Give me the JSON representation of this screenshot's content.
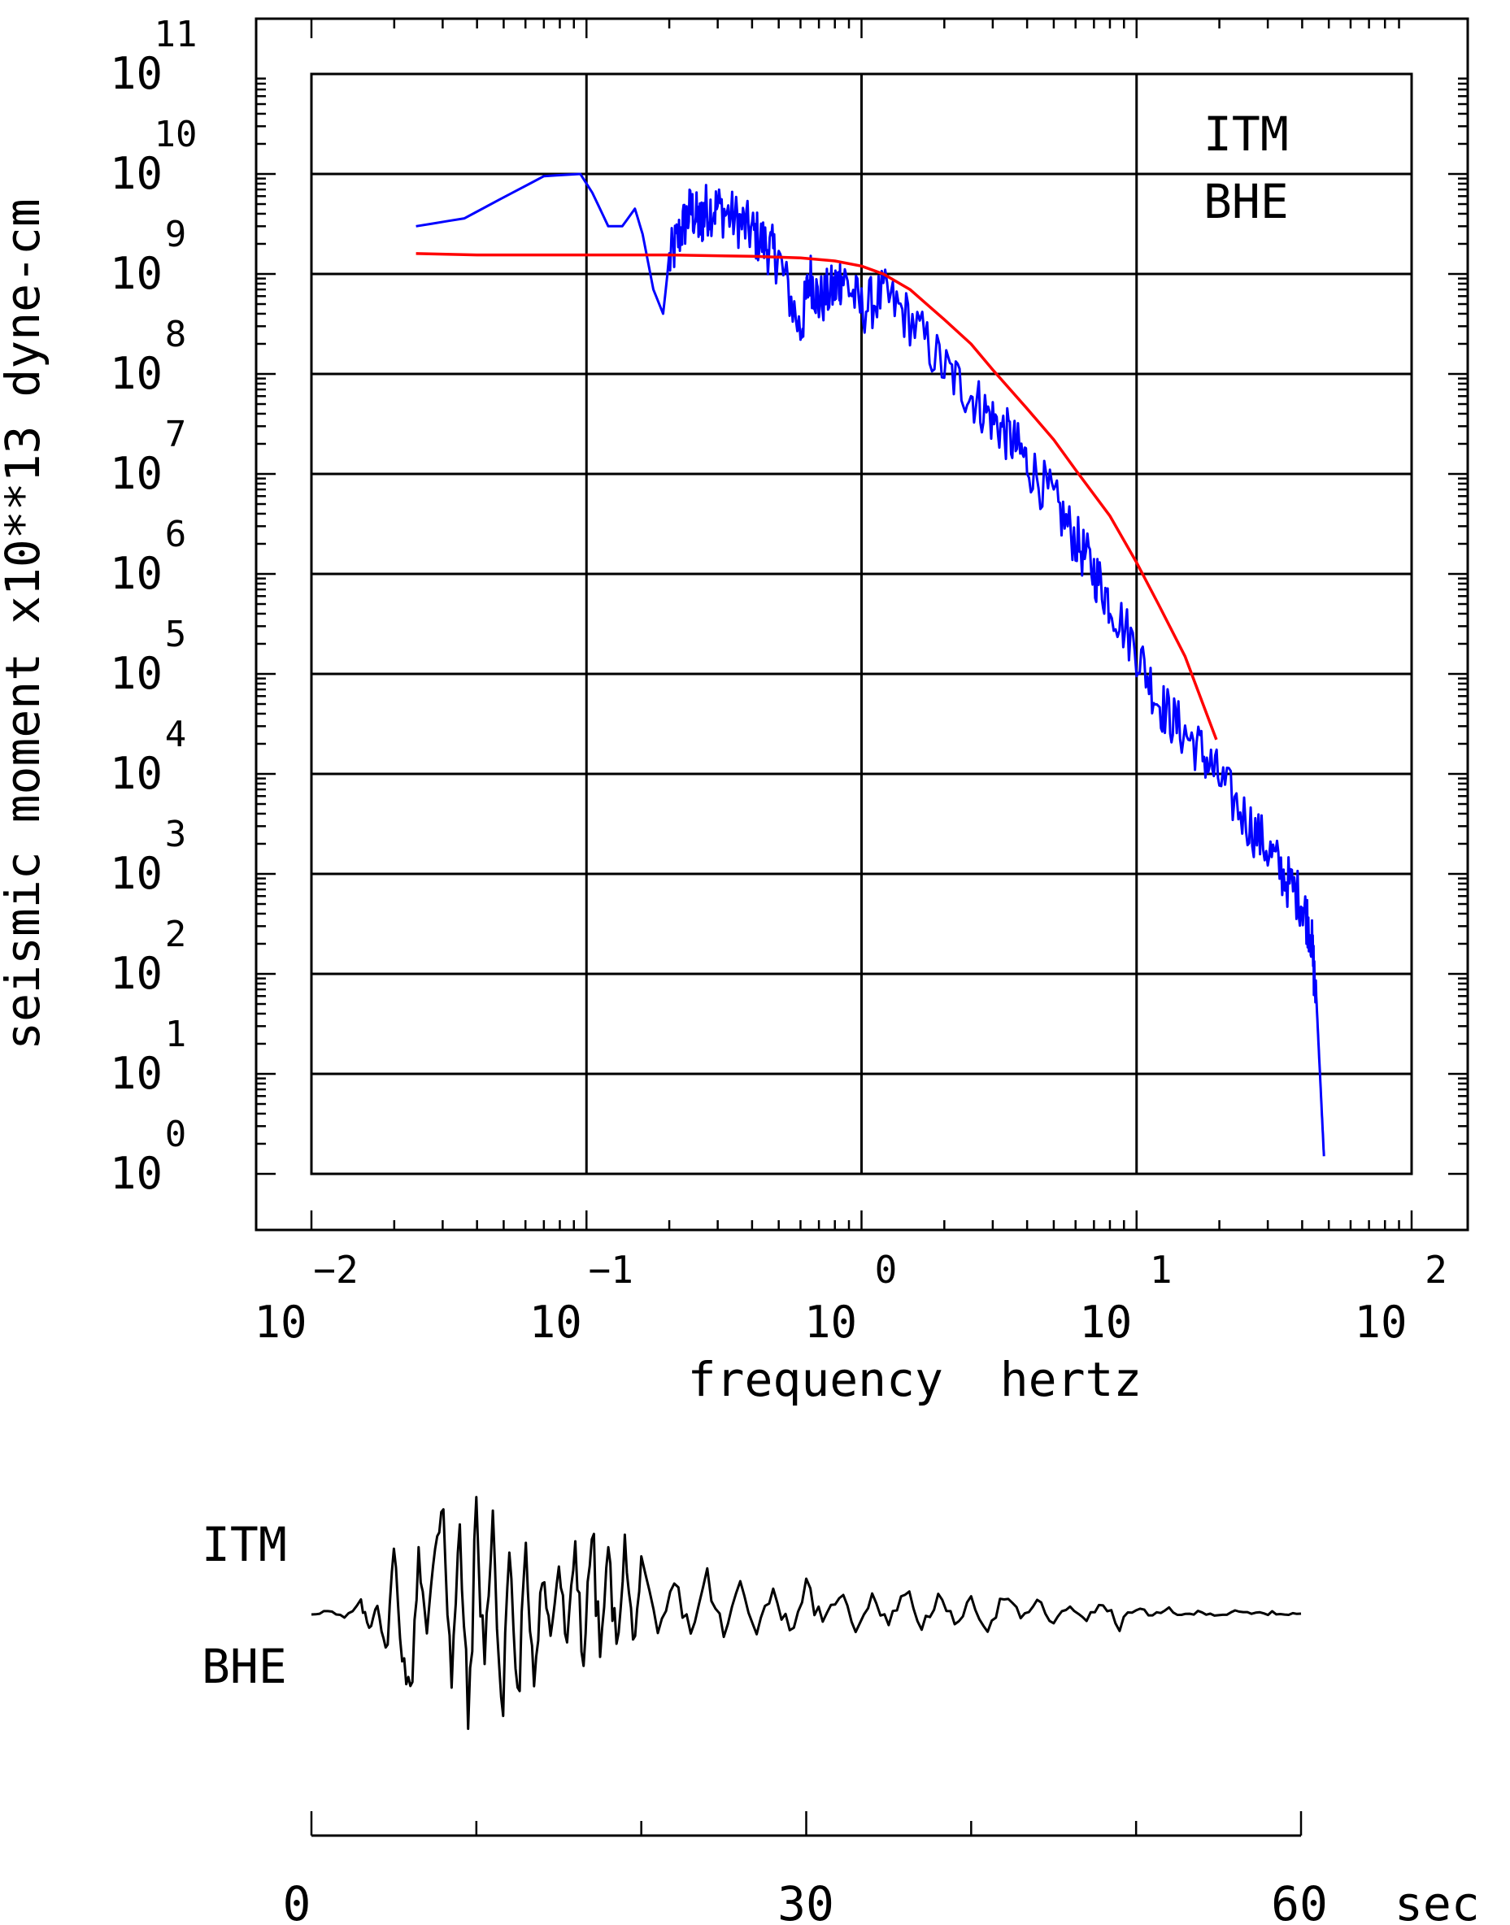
{
  "chart_data": [
    {
      "type": "line",
      "title": "",
      "xlabel": "frequency  hertz",
      "ylabel": "seismic moment x10**13 dyne-cm",
      "xscale": "log",
      "yscale": "log",
      "xlim": [
        0.01,
        100
      ],
      "ylim": [
        1,
        100000000000
      ],
      "grid": true,
      "x_tick_labels": [
        {
          "base": "10",
          "exp": "−2"
        },
        {
          "base": "10",
          "exp": "−1"
        },
        {
          "base": "10",
          "exp": "0"
        },
        {
          "base": "10",
          "exp": "1"
        },
        {
          "base": "10",
          "exp": "2"
        }
      ],
      "y_tick_labels": [
        {
          "base": "10",
          "exp": "0"
        },
        {
          "base": "10",
          "exp": "1"
        },
        {
          "base": "10",
          "exp": "2"
        },
        {
          "base": "10",
          "exp": "3"
        },
        {
          "base": "10",
          "exp": "4"
        },
        {
          "base": "10",
          "exp": "5"
        },
        {
          "base": "10",
          "exp": "6"
        },
        {
          "base": "10",
          "exp": "7"
        },
        {
          "base": "10",
          "exp": "8"
        },
        {
          "base": "10",
          "exp": "9"
        },
        {
          "base": "10",
          "exp": "10"
        },
        {
          "base": "10",
          "exp": "11"
        }
      ],
      "annotations": [
        "ITM",
        "BHE"
      ],
      "series": [
        {
          "color": "#0000ff",
          "style": "observed spectrum",
          "x": [
            0.024,
            0.036,
            0.048,
            0.07,
            0.095,
            0.105,
            0.12,
            0.135,
            0.15,
            0.16,
            0.175,
            0.19,
            0.2,
            0.22,
            0.24,
            0.26,
            0.27,
            0.3,
            0.35,
            0.4,
            0.45,
            0.5,
            0.6,
            0.65,
            0.7,
            0.8,
            0.85,
            1.0,
            1.2,
            1.5,
            2.0,
            2.5,
            3.0,
            3.5,
            4.0,
            5.0,
            6.0,
            7.0,
            8.0,
            10.0,
            12.0,
            14.0,
            17.0,
            20.0,
            25.0,
            30.0,
            35.0,
            40.0,
            43.0,
            45.0,
            47.0,
            48.0
          ],
          "y": [
            3000000000.0,
            3600000000.0,
            5500000000.0,
            9500000000.0,
            10000000000.0,
            6500000000.0,
            3000000000.0,
            3000000000.0,
            4500000000.0,
            2500000000.0,
            700000000.0,
            400000000.0,
            1500000000.0,
            3000000000.0,
            5000000000.0,
            3500000000.0,
            5000000000.0,
            5200000000.0,
            4000000000.0,
            3000000000.0,
            2200000000.0,
            1600000000.0,
            300000000.0,
            1100000000.0,
            600000000.0,
            800000000.0,
            1100000000.0,
            500000000.0,
            700000000.0,
            400000000.0,
            130000000.0,
            70000000.0,
            40000000.0,
            25000000.0,
            15000000.0,
            6000000.0,
            2500000.0,
            1200000.0,
            600000.0,
            200000.0,
            60000.0,
            35000.0,
            20000.0,
            10000.0,
            4000.0,
            2000.0,
            1000.0,
            600.0,
            300.0,
            60.0,
            5.0,
            1.5
          ]
        },
        {
          "color": "#ff0000",
          "style": "model fit",
          "x": [
            0.024,
            0.04,
            0.1,
            0.2,
            0.4,
            0.6,
            0.8,
            1.0,
            1.2,
            1.5,
            2.0,
            2.5,
            3.0,
            4.0,
            5.0,
            6.0,
            8.0,
            10.0,
            12.0,
            15.0,
            19.5
          ],
          "y": [
            1600000000.0,
            1550000000.0,
            1550000000.0,
            1550000000.0,
            1500000000.0,
            1450000000.0,
            1350000000.0,
            1200000000.0,
            1000000000.0,
            700000000.0,
            350000000.0,
            200000000.0,
            110000000.0,
            45000000.0,
            22000000.0,
            11000000.0,
            3800000.0,
            1300000.0,
            500000.0,
            150000.0,
            22000.0
          ]
        }
      ]
    },
    {
      "type": "line",
      "title": "",
      "annotations": [
        "ITM",
        "BHE"
      ],
      "x_unit_label": "sec",
      "x_tick_labels": [
        "0",
        "30",
        "60"
      ],
      "xlim": [
        0,
        60
      ],
      "series": [
        {
          "color": "#000000",
          "style": "seismogram",
          "t": [
            0,
            1,
            2,
            3,
            3.5,
            4,
            4.5,
            5,
            5.5,
            6,
            6.5,
            7,
            7.5,
            8,
            8.5,
            9,
            9.5,
            10,
            10.5,
            11,
            11.5,
            12,
            12.5,
            13,
            13.5,
            14,
            14.5,
            15,
            15.5,
            16,
            16.5,
            17,
            17.5,
            18,
            18.5,
            19,
            19.5,
            20,
            21,
            22,
            23,
            24,
            25,
            26,
            27,
            28,
            29,
            30,
            31,
            32,
            33,
            34,
            35,
            36,
            37,
            38,
            39,
            40,
            41,
            42,
            43,
            44,
            45,
            46,
            47,
            48,
            49,
            50,
            51,
            52,
            53,
            54,
            55,
            56,
            57,
            58,
            59,
            60
          ],
          "a": [
            0,
            0.02,
            -0.04,
            0.08,
            -0.12,
            0.1,
            -0.35,
            0.5,
            -0.3,
            -0.7,
            0.55,
            -0.2,
            0.6,
            0.95,
            -0.6,
            0.7,
            -0.9,
            0.8,
            -0.4,
            0.85,
            -0.95,
            0.55,
            -0.75,
            0.45,
            -0.5,
            0.35,
            -0.2,
            0.4,
            -0.3,
            0.6,
            -0.4,
            0.7,
            -0.35,
            0.5,
            -0.3,
            0.55,
            -0.25,
            0.35,
            -0.2,
            0.25,
            -0.15,
            0.3,
            -0.2,
            0.25,
            -0.12,
            0.2,
            -0.15,
            0.22,
            -0.1,
            0.18,
            -0.12,
            0.15,
            -0.08,
            0.2,
            -0.1,
            0.12,
            -0.08,
            0.1,
            -0.12,
            0.15,
            -0.05,
            0.1,
            -0.08,
            0.06,
            -0.04,
            0.08,
            -0.1,
            0.05,
            -0.03,
            0.04,
            -0.02,
            0.02,
            -0.01,
            0.01,
            0,
            0.005,
            0,
            0
          ]
        }
      ]
    }
  ]
}
